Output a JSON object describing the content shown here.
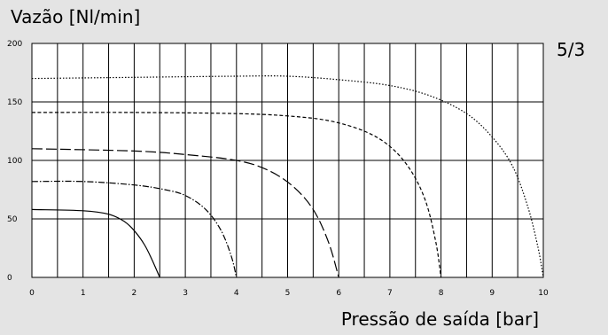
{
  "chart_data": {
    "type": "line",
    "ylabel": "Vazão [Nl/min]",
    "xlabel": "Pressão de saída [bar]",
    "corner_label": "5/3",
    "xlim": [
      0,
      10
    ],
    "ylim": [
      0,
      200
    ],
    "x_ticks": [
      0,
      1,
      2,
      3,
      4,
      5,
      6,
      7,
      8,
      9,
      10
    ],
    "y_ticks": [
      0,
      50,
      100,
      150,
      200
    ],
    "grid": true,
    "series": [
      {
        "style": "solid",
        "points": [
          [
            0,
            58
          ],
          [
            1,
            57
          ],
          [
            1.5,
            54
          ],
          [
            1.8,
            48
          ],
          [
            2.0,
            40
          ],
          [
            2.2,
            28
          ],
          [
            2.35,
            15
          ],
          [
            2.45,
            5
          ],
          [
            2.5,
            0
          ]
        ]
      },
      {
        "style": "dash-dot",
        "points": [
          [
            0,
            82
          ],
          [
            1,
            82
          ],
          [
            2,
            79
          ],
          [
            2.6,
            75
          ],
          [
            3,
            70
          ],
          [
            3.4,
            58
          ],
          [
            3.7,
            40
          ],
          [
            3.9,
            18
          ],
          [
            4.0,
            0
          ]
        ]
      },
      {
        "style": "long-dash",
        "points": [
          [
            0,
            110
          ],
          [
            2,
            108
          ],
          [
            3,
            105
          ],
          [
            4,
            100
          ],
          [
            4.6,
            92
          ],
          [
            5.1,
            78
          ],
          [
            5.5,
            58
          ],
          [
            5.8,
            30
          ],
          [
            6.0,
            0
          ]
        ]
      },
      {
        "style": "short-dash",
        "points": [
          [
            0,
            141
          ],
          [
            2,
            141
          ],
          [
            4,
            140
          ],
          [
            5,
            138
          ],
          [
            5.8,
            134
          ],
          [
            6.5,
            125
          ],
          [
            7.0,
            112
          ],
          [
            7.4,
            92
          ],
          [
            7.7,
            65
          ],
          [
            7.9,
            30
          ],
          [
            8.0,
            0
          ]
        ]
      },
      {
        "style": "dotted",
        "points": [
          [
            0,
            170
          ],
          [
            2,
            171
          ],
          [
            4,
            172
          ],
          [
            5,
            172
          ],
          [
            6,
            169
          ],
          [
            7,
            164
          ],
          [
            7.8,
            155
          ],
          [
            8.5,
            140
          ],
          [
            9.0,
            120
          ],
          [
            9.4,
            95
          ],
          [
            9.7,
            60
          ],
          [
            9.9,
            25
          ],
          [
            10.0,
            0
          ]
        ]
      }
    ]
  }
}
